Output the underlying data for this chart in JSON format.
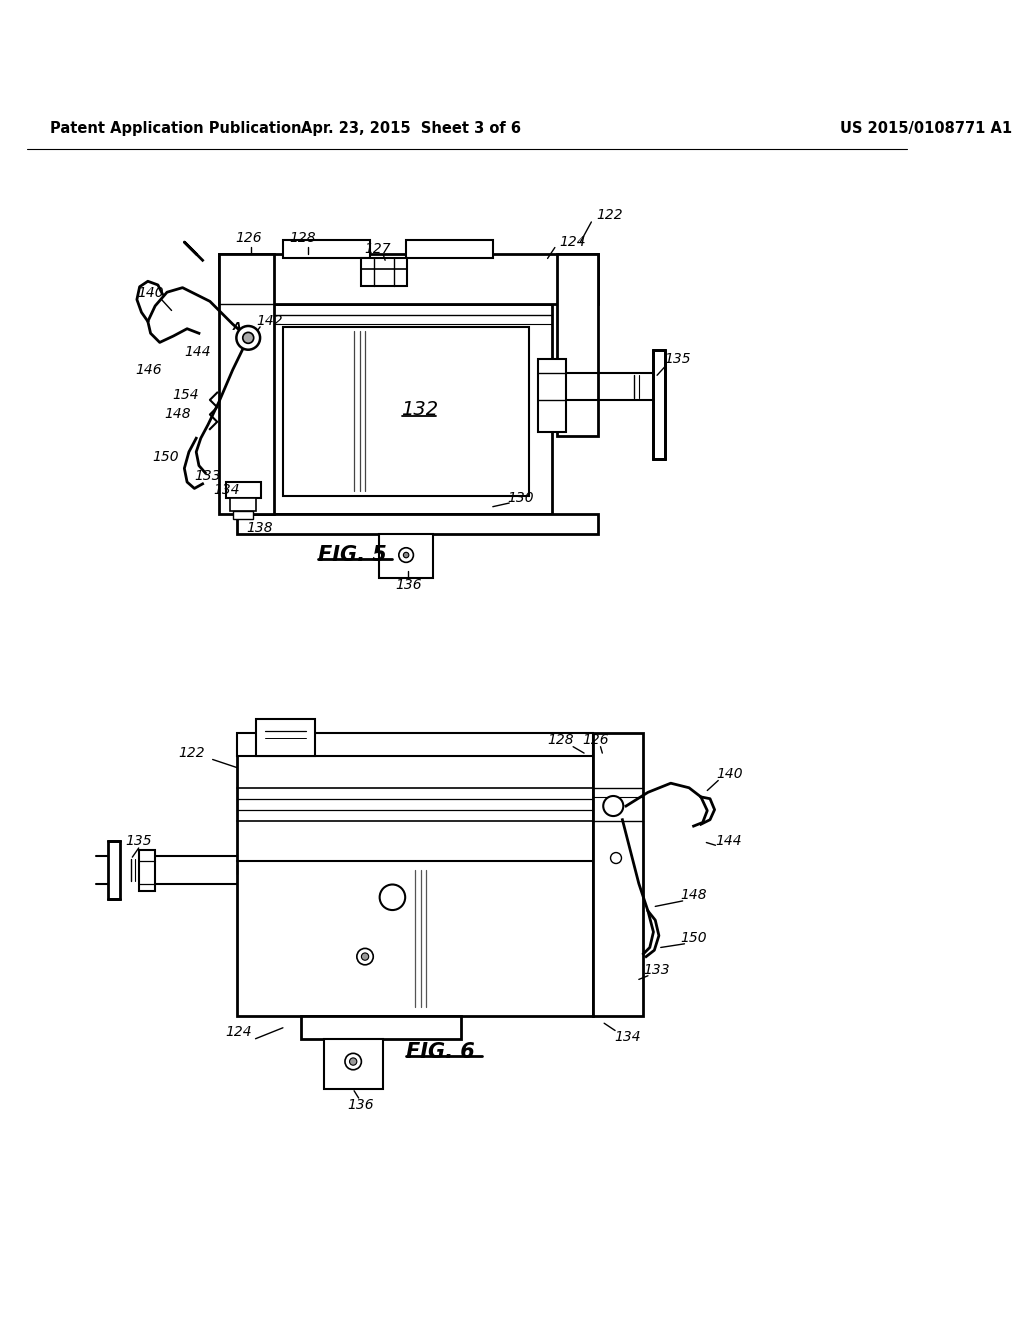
{
  "bg_color": "#ffffff",
  "line_color": "#000000",
  "header_left": "Patent Application Publication",
  "header_center": "Apr. 23, 2015  Sheet 3 of 6",
  "header_right": "US 2015/0108771 A1"
}
